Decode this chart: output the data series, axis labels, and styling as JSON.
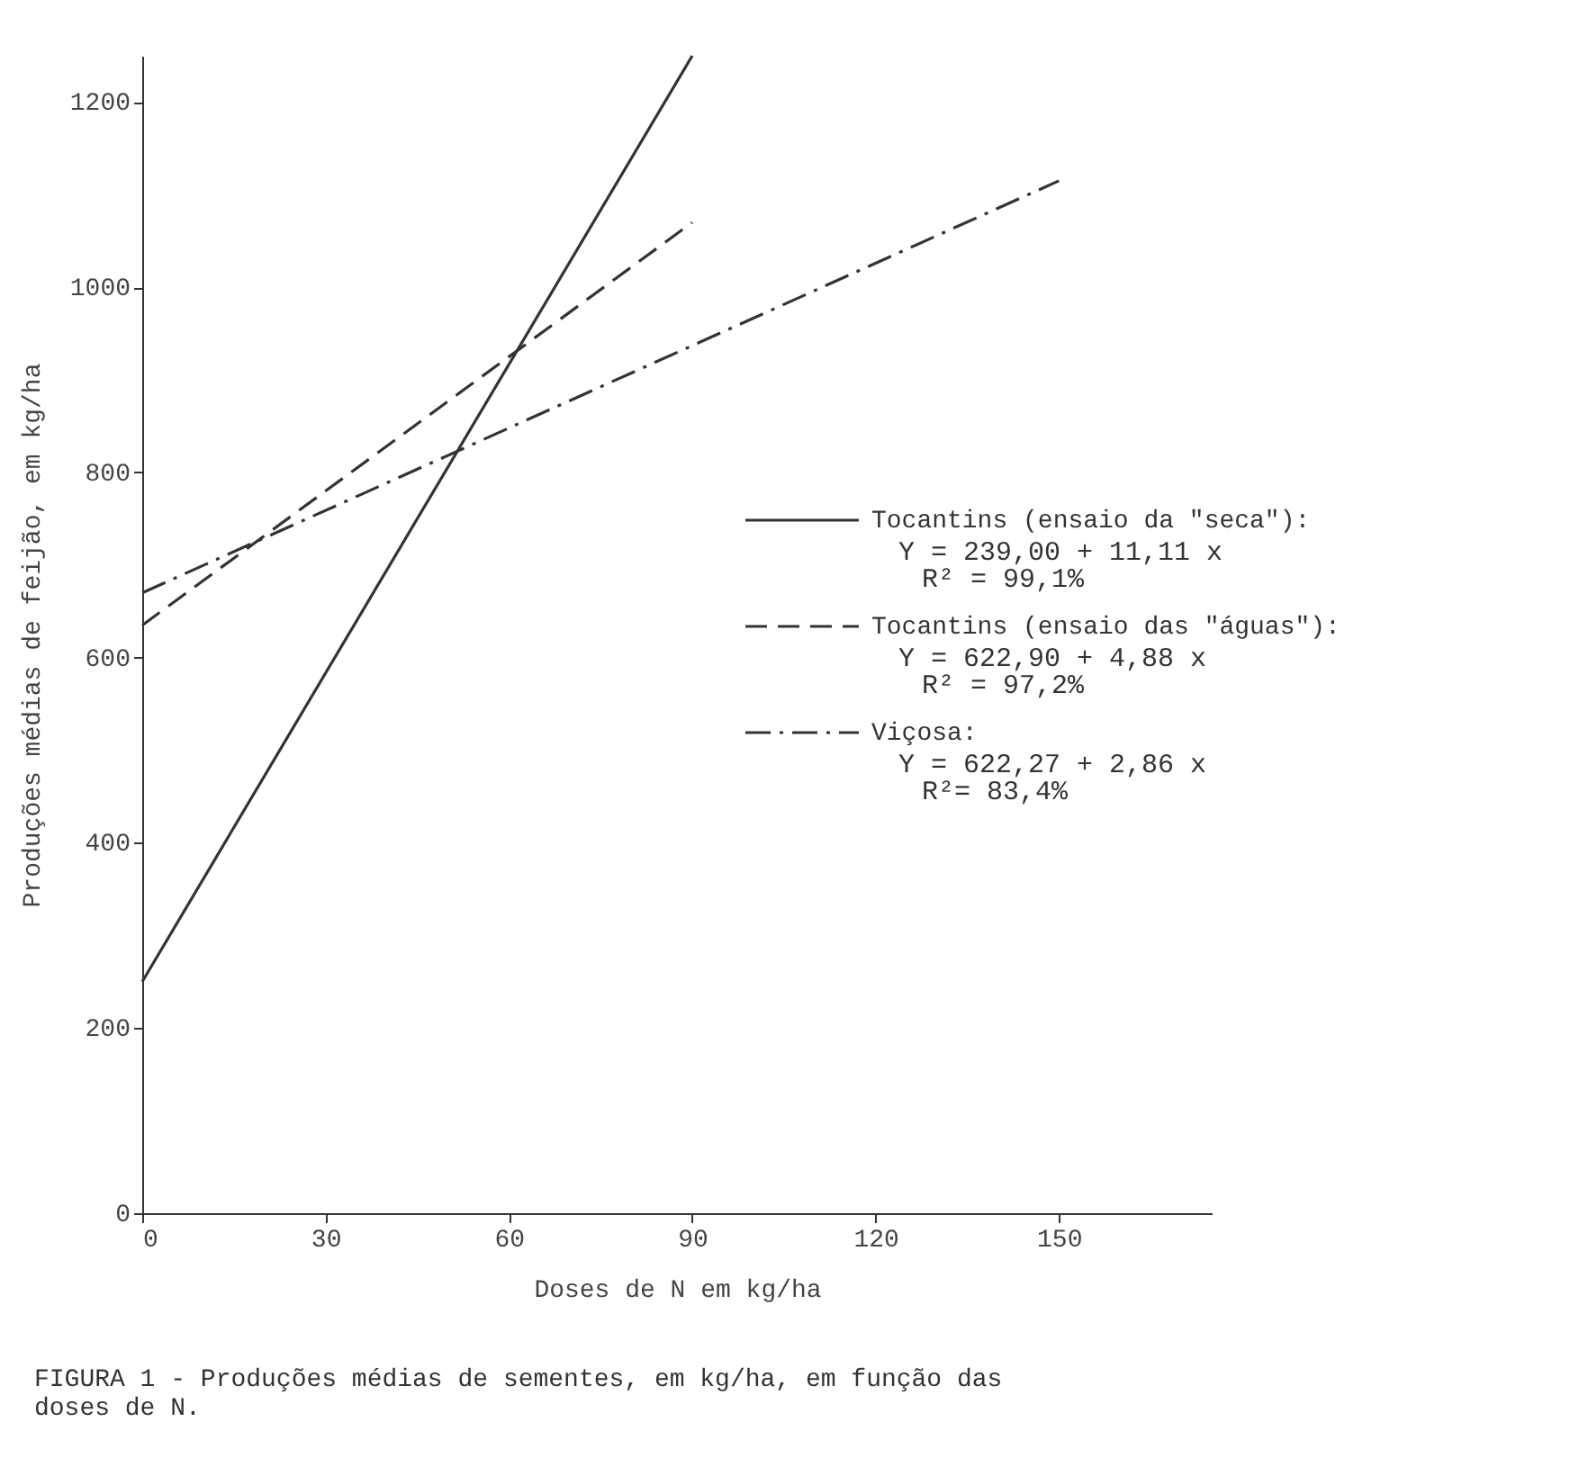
{
  "chart_data": {
    "type": "line",
    "xlabel": "Doses de N em kg/ha",
    "ylabel": "Produções médias de feijão, em kg/ha",
    "xlim": [
      0,
      175
    ],
    "xticks": [
      0,
      30,
      60,
      90,
      120,
      150
    ],
    "ylim": [
      0,
      1250
    ],
    "yticks": [
      0,
      200,
      400,
      600,
      800,
      {
        "value": 1000,
        "label": "1000"
      },
      {
        "value": 1200,
        "label": "1200"
      }
    ],
    "legend": "right",
    "series": [
      {
        "name": "Tocantins (ensaio da \"seca\"):",
        "color": "#333333",
        "line_style": "solid",
        "x": [
          0,
          90
        ],
        "values": [
          250,
          1250
        ]
      },
      {
        "name": "Tocantins (ensaio das \"águas\"):",
        "color": "#333333",
        "line_style": "dashed",
        "x": [
          0,
          90
        ],
        "values": [
          635,
          1070
        ]
      },
      {
        "name": "Viçosa:",
        "color": "#333333",
        "line_style": "dashdot",
        "x": [
          0,
          150
        ],
        "values": [
          670,
          1115
        ]
      }
    ],
    "annotations": [
      "Y = 239,00 + 11,11 x",
      "R² =  99,1%",
      "Y = 622,90 + 4,88 x",
      "R² = 97,2%",
      "Y = 622,27 + 2,86 x",
      "R²= 83,4%",
      "FIGURA 1 - Produções médias de sementes, em kg/ha, em função das doses de N."
    ]
  }
}
